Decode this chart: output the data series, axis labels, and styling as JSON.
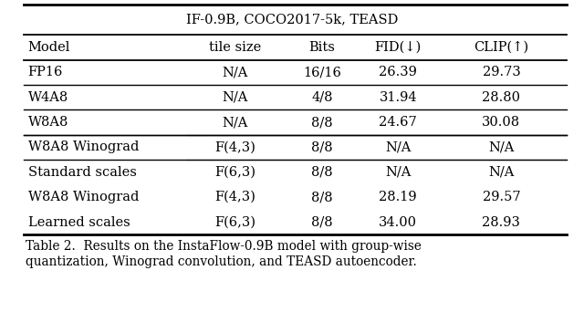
{
  "title": "IF-0.9B, COCO2017-5k, TEASD",
  "columns": [
    "Model",
    "tile size",
    "Bits",
    "FID(↓)",
    "CLIP(↑)"
  ],
  "rows": [
    [
      "FP16",
      "N/A",
      "16/16",
      "26.39",
      "29.73"
    ],
    [
      "W4A8",
      "N/A",
      "4/8",
      "31.94",
      "28.80"
    ],
    [
      "W8A8",
      "N/A",
      "8/8",
      "24.67",
      "30.08"
    ],
    [
      "W8A8 Winograd",
      "F(4,3)",
      "8/8",
      "N/A",
      "N/A"
    ],
    [
      "Standard scales",
      "F(6,3)",
      "8/8",
      "N/A",
      "N/A"
    ],
    [
      "W8A8 Winograd",
      "F(4,3)",
      "8/8",
      "28.19",
      "29.57"
    ],
    [
      "Learned scales",
      "F(6,3)",
      "8/8",
      "34.00",
      "28.93"
    ]
  ],
  "caption": "Table 2.  Results on the InstaFlow-0.9B model with group-wise\nquantization, Winograd convolution, and TEASD autoencoder.",
  "figsize": [
    6.4,
    3.42
  ],
  "dpi": 100,
  "font_size": 10.5,
  "caption_font_size": 9.8,
  "background": "#ffffff"
}
